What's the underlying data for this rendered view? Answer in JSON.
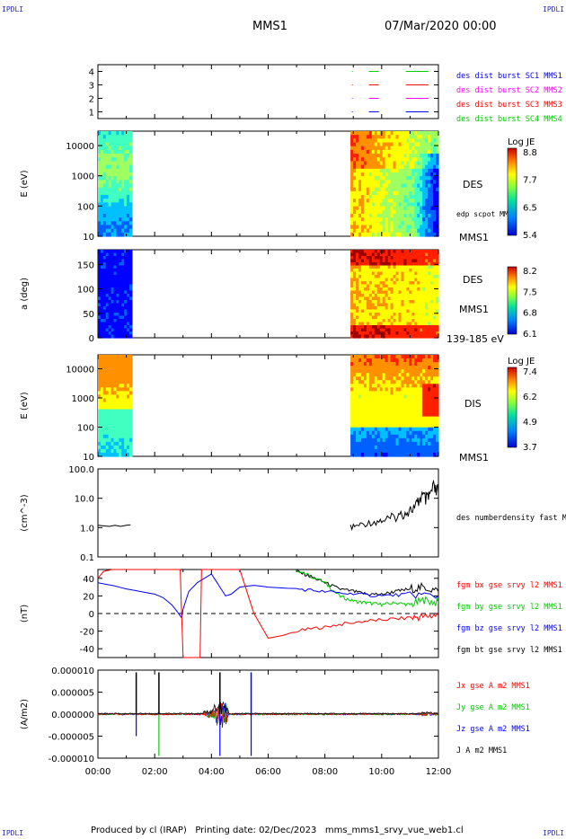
{
  "header": {
    "corner_label": "IPDLI",
    "mission": "MMS1",
    "date": "07/Mar/2020 00:00"
  },
  "footer": {
    "text": "Produced by cl (IRAP)   Printing date: 02/Dec/2023   mms_mms1_srvy_vue_web1.cl"
  },
  "colors": {
    "background": "#ffffff",
    "c1": "#0000ff",
    "c2": "#ff00ff",
    "c3": "#ff0000",
    "c4": "#00cc00",
    "bx": "#ff0000",
    "by": "#00cc00",
    "bz": "#0000ff",
    "bt": "#000000"
  },
  "chart_data": [
    {
      "type": "line",
      "panel": "sc-availability",
      "yticks": [
        "1",
        "2",
        "3",
        "4"
      ],
      "ylim": [
        0.5,
        4.5
      ],
      "series": [
        {
          "name": "des dist burst SC1 MMS1",
          "level": 1,
          "segments": [
            [
              8.95,
              8.98
            ],
            [
              9.55,
              9.9
            ],
            [
              10.85,
              11.65
            ]
          ]
        },
        {
          "name": "des dist burst SC2 MMS2",
          "level": 2,
          "segments": [
            [
              8.95,
              8.98
            ],
            [
              9.55,
              9.9
            ],
            [
              10.85,
              11.65
            ]
          ]
        },
        {
          "name": "des dist burst SC3 MMS3",
          "level": 3,
          "segments": [
            [
              8.95,
              8.98
            ],
            [
              9.55,
              9.9
            ],
            [
              10.85,
              11.65
            ]
          ]
        },
        {
          "name": "des dist burst SC4 MMS4",
          "level": 4,
          "segments": [
            [
              8.95,
              8.98
            ],
            [
              9.55,
              9.9
            ],
            [
              10.85,
              11.65
            ]
          ]
        }
      ],
      "legend_colors": [
        "#0000ff",
        "#ff00ff",
        "#ff0000",
        "#00cc00"
      ]
    },
    {
      "type": "heatmap",
      "panel": "des-energy",
      "ylabel": "E (eV)",
      "yscale": "log",
      "ylim": [
        10,
        30000
      ],
      "yticks": [
        "10",
        "100",
        "1000",
        "10000"
      ],
      "instrument": "DES",
      "overlay_label": "edp scpot MMS1",
      "spacecraft": "MMS1",
      "colorbar_title": "Log JE",
      "colorbar_ticks": [
        "8.8",
        "7.7",
        "6.5",
        "5.4"
      ],
      "data_intervals": [
        [
          0.0,
          1.2
        ],
        [
          8.9,
          12.0
        ]
      ]
    },
    {
      "type": "heatmap",
      "panel": "des-pitch",
      "ylabel": "a (deg)",
      "ylim": [
        0,
        180
      ],
      "yticks": [
        "0",
        "50",
        "100",
        "150"
      ],
      "instrument": "DES",
      "spacecraft": "MMS1",
      "energy_range": "139-185 eV",
      "colorbar_ticks": [
        "8.2",
        "7.5",
        "6.8",
        "6.1"
      ],
      "data_intervals": [
        [
          0.0,
          1.2
        ],
        [
          8.9,
          12.0
        ]
      ]
    },
    {
      "type": "heatmap",
      "panel": "dis-energy",
      "ylabel": "E (eV)",
      "yscale": "log",
      "ylim": [
        10,
        30000
      ],
      "yticks": [
        "10",
        "100",
        "1000",
        "10000"
      ],
      "instrument": "DIS",
      "spacecraft": "MMS1",
      "colorbar_title": "Log JE",
      "colorbar_ticks": [
        "7.4",
        "6.2",
        "4.9",
        "3.7"
      ],
      "data_intervals": [
        [
          0.0,
          1.2
        ],
        [
          8.9,
          12.0
        ]
      ]
    },
    {
      "type": "line",
      "panel": "density",
      "ylabel": "(cm^-3)",
      "yscale": "log",
      "ylim": [
        0.1,
        100
      ],
      "yticks": [
        "0.1",
        "1.0",
        "10.0",
        "100.0"
      ],
      "series": [
        {
          "name": "des numberdensity fast M",
          "x": [
            0.0,
            0.2,
            0.4,
            0.6,
            0.8,
            1.0,
            1.15,
            8.9,
            9.3,
            9.8,
            10.2,
            10.6,
            10.9,
            11.2,
            11.4,
            11.6,
            11.8,
            12.0
          ],
          "y": [
            1.2,
            1.15,
            1.1,
            1.2,
            1.1,
            1.2,
            1.25,
            1.0,
            1.3,
            1.6,
            1.9,
            2.5,
            3.5,
            5.0,
            12.0,
            8.0,
            20.0,
            15.0
          ]
        }
      ]
    },
    {
      "type": "line",
      "panel": "magnetic-field",
      "ylabel": "(nT)",
      "ylim": [
        -50,
        50
      ],
      "yticks": [
        "-40",
        "-20",
        "0",
        "20",
        "40"
      ],
      "series": [
        {
          "name": "fgm bx gse srvy l2 MMS1",
          "x": [
            0.0,
            0.2,
            0.5,
            1.0,
            1.5,
            2.0,
            2.5,
            2.9,
            3.0,
            3.6,
            3.65,
            4.5,
            5.0,
            5.5,
            6.0,
            6.5,
            7.0,
            8.0,
            9.0,
            10.0,
            11.0,
            11.5,
            12.0
          ],
          "y": [
            40,
            48,
            50,
            50,
            50,
            50,
            50,
            50,
            -50,
            -50,
            50,
            50,
            50,
            0,
            -28,
            -25,
            -20,
            -15,
            -10,
            -7,
            -5,
            -3,
            -2
          ]
        },
        {
          "name": "fgm by gse srvy l2 MMS1",
          "x": [
            7.0,
            8.0,
            8.5,
            9.0,
            9.5,
            10.0,
            10.5,
            11.0,
            11.5,
            12.0
          ],
          "y": [
            50,
            35,
            20,
            14,
            12,
            10,
            12,
            10,
            15,
            12
          ]
        },
        {
          "name": "fgm bz gse srvy l2 MMS1",
          "x": [
            0.0,
            0.5,
            1.0,
            1.5,
            2.0,
            2.3,
            2.6,
            2.8,
            2.95,
            3.0,
            3.2,
            3.5,
            4.0,
            4.3,
            4.5,
            4.7,
            5.0,
            5.5,
            6.0,
            7.0,
            8.0,
            9.0,
            10.0,
            11.0,
            12.0
          ],
          "y": [
            35,
            32,
            28,
            25,
            22,
            18,
            10,
            2,
            -5,
            5,
            25,
            35,
            45,
            30,
            20,
            22,
            30,
            32,
            30,
            28,
            25,
            22,
            20,
            22,
            20
          ]
        },
        {
          "name": "fgm bt gse srvy l2 MMS1",
          "x": [
            7.0,
            7.5,
            8.0,
            8.5,
            9.0,
            9.5,
            10.0,
            10.5,
            11.0,
            11.5,
            12.0
          ],
          "y": [
            48,
            42,
            35,
            28,
            25,
            22,
            22,
            25,
            28,
            30,
            25
          ]
        }
      ]
    },
    {
      "type": "line",
      "panel": "current-density",
      "ylabel": "(A/m2)",
      "ylim": [
        -1e-05,
        1e-05
      ],
      "yticks": [
        "-0.000010",
        "-0.000005",
        "0.000000",
        "0.000005",
        "0.000010"
      ],
      "xlabel": "",
      "xticks": [
        "00:00",
        "02:00",
        "04:00",
        "06:00",
        "08:00",
        "10:00",
        "12:00"
      ],
      "xlim": [
        0,
        12
      ],
      "series": [
        {
          "name": "Jx gse A m2 MMS1"
        },
        {
          "name": "Jy gse A m2 MMS1"
        },
        {
          "name": "Jz gse A m2 MMS1"
        },
        {
          "name": "J A m2 MMS1"
        }
      ],
      "spikes": [
        {
          "t": 1.35,
          "up": 9.5e-06,
          "down": -5e-06
        },
        {
          "t": 2.15,
          "up": 9.5e-06,
          "down": -9.5e-06
        },
        {
          "t": 4.3,
          "up": 9.5e-06,
          "down": -9.5e-06
        },
        {
          "t": 5.4,
          "up": 9.5e-06,
          "down": -9.5e-06
        }
      ]
    }
  ]
}
